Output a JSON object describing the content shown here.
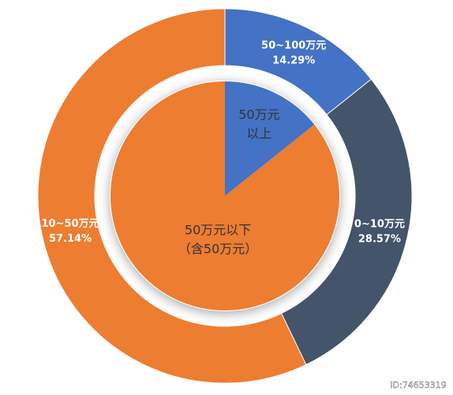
{
  "chart_data": [
    {
      "type": "donut",
      "categories": [
        "50~100万元",
        "0~10万元",
        "10~50万元"
      ],
      "values": [
        14.29,
        28.57,
        57.14
      ],
      "value_labels": [
        "14.29%",
        "28.57%",
        "57.14%"
      ],
      "colors": [
        "#4472c4",
        "#44546a",
        "#ed7d31"
      ]
    },
    {
      "type": "pie",
      "categories": [
        [
          "50万元",
          "以上"
        ],
        [
          "50万元以下",
          "（含50万元）"
        ]
      ],
      "values": [
        14.29,
        85.71
      ],
      "colors": [
        "#4472c4",
        "#ed7d31"
      ]
    }
  ],
  "watermark": "ID:74653319"
}
